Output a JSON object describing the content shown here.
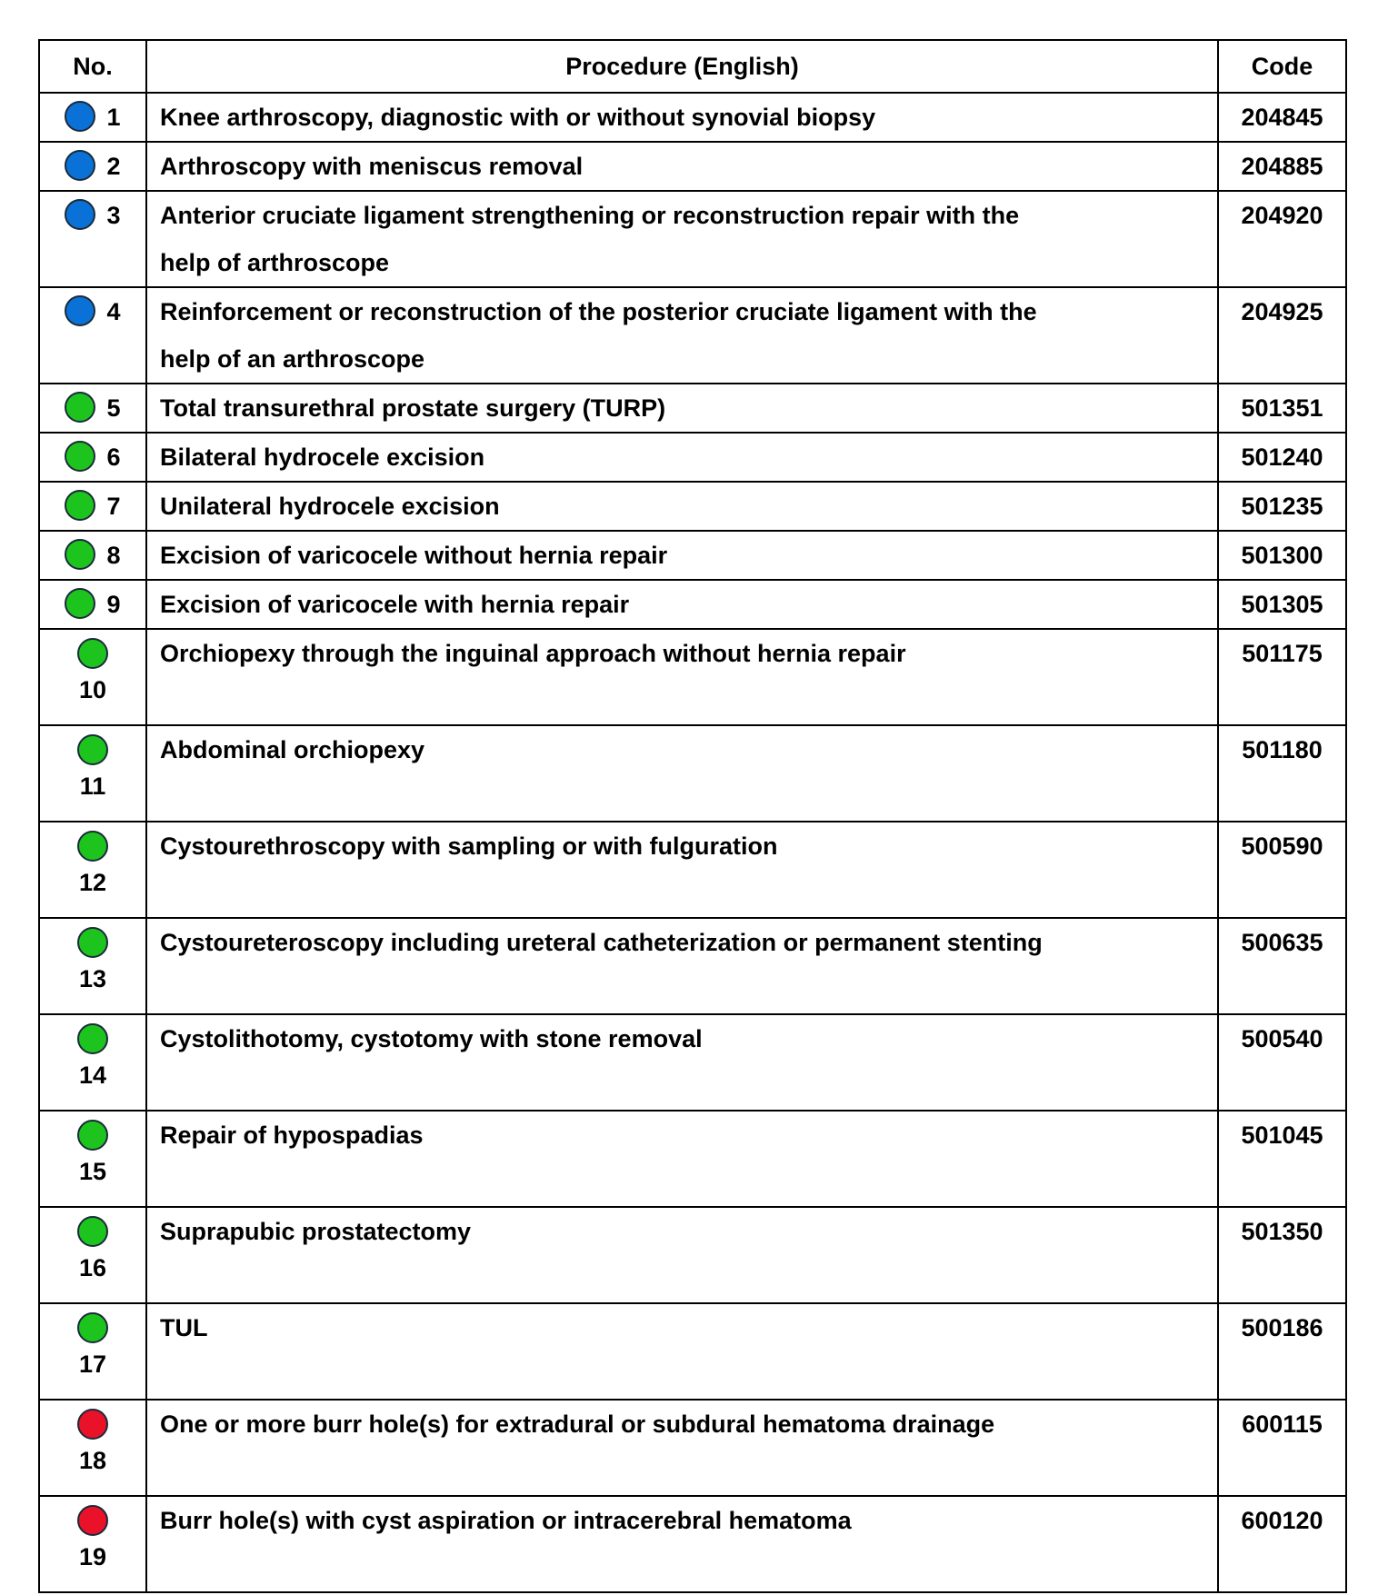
{
  "headers": {
    "no": "No.",
    "procedure": "Procedure (English)",
    "code": "Code"
  },
  "colors": {
    "blue": "#0a72d6",
    "green": "#1ec41e",
    "red": "#ea1228"
  },
  "rows": [
    {
      "no": "1",
      "category": "blue",
      "procedure": "Knee arthroscopy, diagnostic with or without synovial biopsy",
      "code": "204845"
    },
    {
      "no": "2",
      "category": "blue",
      "procedure": "Arthroscopy with meniscus removal",
      "code": "204885"
    },
    {
      "no": "3",
      "category": "blue",
      "procedure": "Anterior cruciate ligament strengthening or reconstruction repair with the",
      "procedure_line2": "help of arthroscope",
      "code": "204920"
    },
    {
      "no": "4",
      "category": "blue",
      "procedure": "Reinforcement or reconstruction of the posterior cruciate ligament with the",
      "procedure_line2": "help of an arthroscope",
      "code": "204925"
    },
    {
      "no": "5",
      "category": "green",
      "procedure": "Total transurethral prostate surgery (TURP)",
      "code": "501351"
    },
    {
      "no": "6",
      "category": "green",
      "procedure": "Bilateral hydrocele excision",
      "code": "501240"
    },
    {
      "no": "7",
      "category": "green",
      "procedure": "Unilateral hydrocele excision",
      "code": "501235"
    },
    {
      "no": "8",
      "category": "green",
      "procedure": "Excision of varicocele without hernia repair",
      "code": "501300"
    },
    {
      "no": "9",
      "category": "green",
      "procedure": "Excision of varicocele with hernia repair",
      "code": "501305"
    },
    {
      "no": "10",
      "category": "green",
      "procedure": "Orchiopexy through the inguinal approach without hernia repair",
      "code": "501175"
    },
    {
      "no": "11",
      "category": "green",
      "procedure": "Abdominal orchiopexy",
      "code": "501180"
    },
    {
      "no": "12",
      "category": "green",
      "procedure": "Cystourethroscopy with sampling or with fulguration",
      "code": "500590"
    },
    {
      "no": "13",
      "category": "green",
      "procedure": "Cystoureteroscopy including ureteral catheterization or permanent stenting",
      "code": "500635"
    },
    {
      "no": "14",
      "category": "green",
      "procedure": "Cystolithotomy, cystotomy with stone removal",
      "code": "500540"
    },
    {
      "no": "15",
      "category": "green",
      "procedure": "Repair of hypospadias",
      "code": "501045"
    },
    {
      "no": "16",
      "category": "green",
      "procedure": "Suprapubic prostatectomy",
      "code": "501350"
    },
    {
      "no": "17",
      "category": "green",
      "procedure": "TUL",
      "code": "500186"
    },
    {
      "no": "18",
      "category": "red",
      "procedure": "One or more burr hole(s) for extradural or subdural hematoma drainage",
      "code": "600115"
    },
    {
      "no": "19",
      "category": "red",
      "procedure": "Burr hole(s) with cyst aspiration or intracerebral hematoma",
      "code": "600120"
    }
  ]
}
